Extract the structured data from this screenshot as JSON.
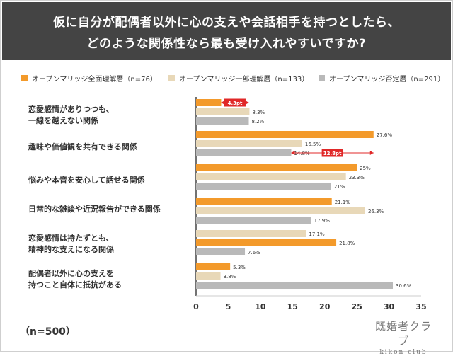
{
  "header": {
    "line1": "仮に自分が配偶者以外に心の支えや会話相手を持つとしたら、",
    "line2": "どのような関係性なら最も受け入れやすいですか?"
  },
  "sample_size": "（n=500）",
  "logo": {
    "main": "既婚者クラブ",
    "sub": "kikon club"
  },
  "chart_data": {
    "type": "bar",
    "orientation": "horizontal",
    "categories": [
      [
        "恋愛感情がありつつも、",
        "一線を越えない関係"
      ],
      [
        "趣味や価値観を共有できる関係"
      ],
      [
        "悩みや本音を安心して話せる関係"
      ],
      [
        "日常的な雑談や近況報告ができる関係"
      ],
      [
        "恋愛感情は持たずとも、",
        "精神的な支えになる関係"
      ],
      [
        "配偶者以外に心の支えを",
        "持つこと自体に抵抗がある"
      ]
    ],
    "series": [
      {
        "name": "オープンマリッジ全面理解層（n=76）",
        "color": "#F39A2B",
        "values": [
          3.9,
          27.6,
          25,
          21.1,
          21.8,
          5.3
        ],
        "labels": [
          "3.9%",
          "27.6%",
          "25%",
          "21.1%",
          "21.8%",
          "5.3%"
        ]
      },
      {
        "name": "オープンマリッジ一部理解層（n=133）",
        "color": "#E8D8B8",
        "values": [
          8.3,
          16.5,
          23.3,
          26.3,
          17.1,
          3.8
        ],
        "labels": [
          "8.3%",
          "16.5%",
          "23.3%",
          "26.3%",
          "17.1%",
          "3.8%"
        ]
      },
      {
        "name": "オープンマリッジ否定層（n=291）",
        "color": "#B9B9B9",
        "values": [
          8.2,
          14.8,
          21,
          17.9,
          7.6,
          30.6
        ],
        "labels": [
          "8.2%",
          "14.8%",
          "21%",
          "17.9%",
          "7.6%",
          "30.6%"
        ]
      }
    ],
    "series_order_by_category": [
      [
        0,
        1,
        2
      ],
      [
        0,
        1,
        2
      ],
      [
        0,
        1,
        2
      ],
      [
        0,
        1,
        2
      ],
      [
        1,
        0,
        2
      ],
      [
        0,
        1,
        2
      ]
    ],
    "xlim": [
      0,
      35
    ],
    "xticks": [
      0,
      5,
      10,
      15,
      20,
      25,
      30,
      35
    ],
    "annotations": [
      {
        "category": 0,
        "text": "4.3pt",
        "from": 3.9,
        "to": 8.2,
        "color": "#E02828"
      },
      {
        "category": 1,
        "text": "12.8pt",
        "from": 14.8,
        "to": 27.6,
        "color": "#E02828"
      }
    ],
    "legend_position": "top"
  }
}
